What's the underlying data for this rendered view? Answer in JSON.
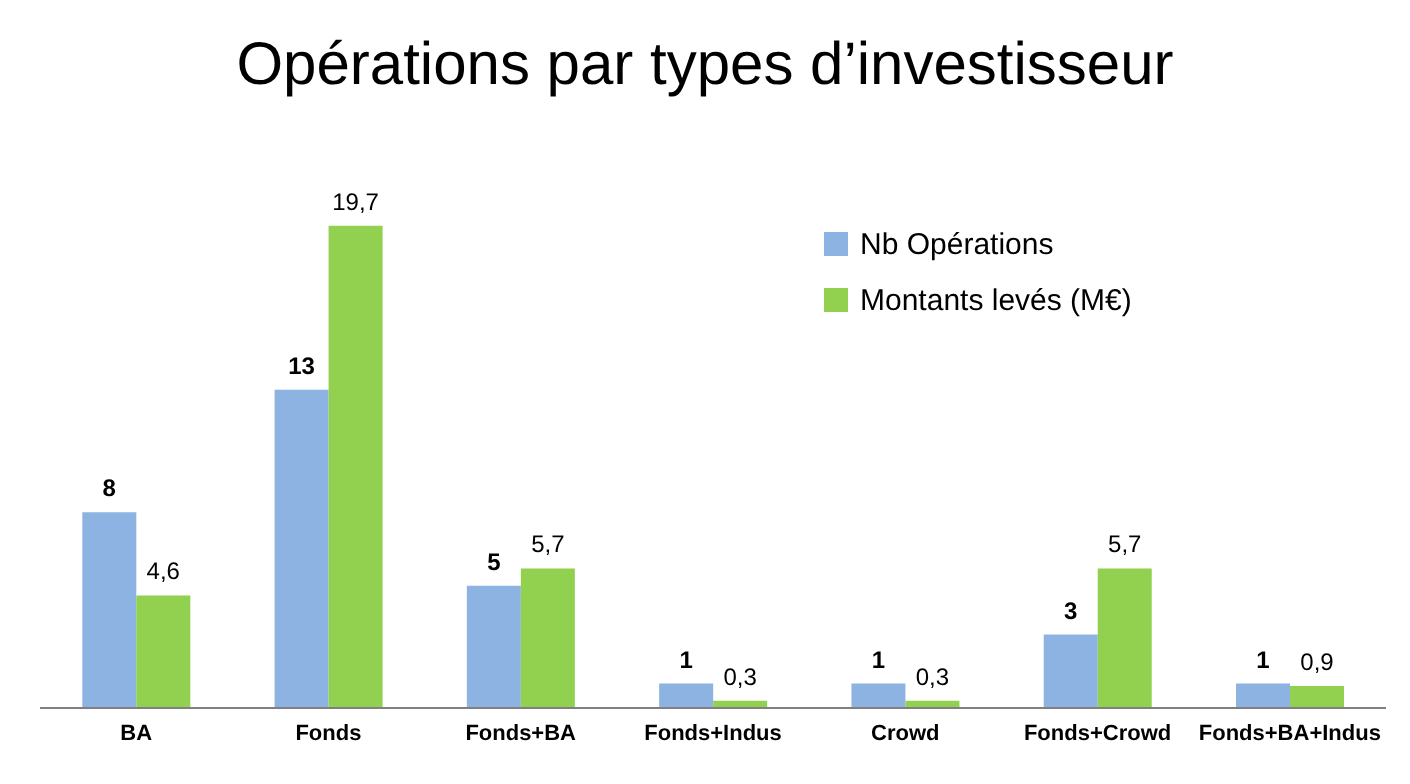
{
  "chart_data": {
    "type": "bar",
    "title": "Opérations par types d’investisseur",
    "categories": [
      "BA",
      "Fonds",
      "Fonds+BA",
      "Fonds+Indus",
      "Crowd",
      "Fonds+Crowd",
      "Fonds+BA+Indus"
    ],
    "series": [
      {
        "name": "Nb Opérations",
        "color": "#8db3e2",
        "values": [
          8,
          13,
          5,
          1,
          1,
          3,
          1
        ],
        "value_labels": [
          "8",
          "13",
          "5",
          "1",
          "1",
          "3",
          "1"
        ]
      },
      {
        "name": "Montants levés (M€)",
        "color": "#92d050",
        "values": [
          4.6,
          19.7,
          5.7,
          0.3,
          0.3,
          5.7,
          0.9
        ],
        "value_labels": [
          "4,6",
          "19,7",
          "5,7",
          "0,3",
          "0,3",
          "5,7",
          "0,9"
        ]
      }
    ],
    "legend": "top right",
    "grid": false
  }
}
